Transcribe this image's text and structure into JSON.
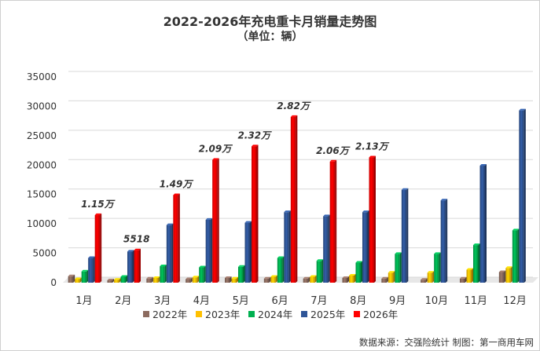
{
  "chart_data": {
    "type": "bar",
    "title": "2022-2026年充电重卡月销量走势图",
    "subtitle": "（单位：辆）",
    "categories": [
      "1月",
      "2月",
      "3月",
      "4月",
      "5月",
      "6月",
      "7月",
      "8月",
      "9月",
      "10月",
      "11月",
      "12月"
    ],
    "series": [
      {
        "name": "2022年",
        "color": "#8c6b5f",
        "values": [
          1100,
          400,
          700,
          600,
          800,
          700,
          700,
          800,
          700,
          500,
          700,
          1800
        ]
      },
      {
        "name": "2023年",
        "color": "#ffc000",
        "values": [
          600,
          500,
          800,
          900,
          700,
          1000,
          1000,
          1200,
          1700,
          1700,
          2200,
          2500
        ]
      },
      {
        "name": "2024年",
        "color": "#00b050",
        "values": [
          1900,
          1000,
          2800,
          2600,
          2700,
          4200,
          3700,
          3400,
          4900,
          4900,
          6400,
          8900
        ]
      },
      {
        "name": "2025年",
        "color": "#2e5597",
        "values": [
          4200,
          5300,
          9800,
          10700,
          10200,
          12000,
          11300,
          12000,
          15800,
          14000,
          19900,
          29300
        ]
      },
      {
        "name": "2026年",
        "color": "#ff0000",
        "values": [
          11500,
          5518,
          14900,
          20900,
          23200,
          28200,
          20600,
          21300,
          null,
          null,
          null,
          null
        ]
      }
    ],
    "annotations": [
      "1.15万",
      "5518",
      "1.49万",
      "2.09万",
      "2.32万",
      "2.82万",
      "2.06万",
      "2.13万",
      null,
      null,
      null,
      null
    ],
    "ylim": [
      0,
      35000
    ],
    "yticks": [
      0,
      5000,
      10000,
      15000,
      20000,
      25000,
      30000,
      35000
    ],
    "xlabel": "",
    "ylabel": "",
    "grid": true,
    "legend": "bottom"
  },
  "source": "数据来源：交强险统计 制图：第一商用车网"
}
